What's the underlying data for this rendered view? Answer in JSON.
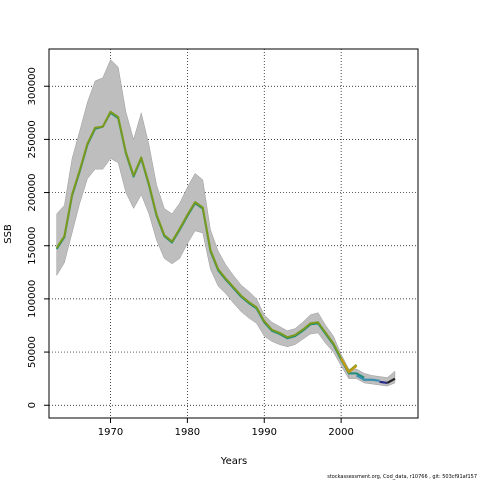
{
  "chart_data": {
    "type": "line",
    "title": "",
    "xlabel": "Years",
    "ylabel": "SSB",
    "xlim": [
      1962,
      2010
    ],
    "ylim": [
      -12000,
      335000
    ],
    "x_ticks": [
      1970,
      1980,
      1990,
      2000
    ],
    "y_ticks": [
      0,
      50000,
      100000,
      150000,
      200000,
      250000,
      300000
    ],
    "grid": true,
    "legend": "none",
    "footer": "stockassessment.org, Cod_data, r10766 , git: 503cf91af157",
    "band": {
      "color": "#bebebe",
      "x": [
        1963,
        1964,
        1965,
        1966,
        1967,
        1968,
        1969,
        1970,
        1971,
        1972,
        1973,
        1974,
        1975,
        1976,
        1977,
        1978,
        1979,
        1980,
        1981,
        1982,
        1983,
        1984,
        1985,
        1986,
        1987,
        1988,
        1989,
        1990,
        1991,
        1992,
        1993,
        1994,
        1995,
        1996,
        1997,
        1998,
        1999,
        2000,
        2001
      ],
      "upper": [
        180000,
        188000,
        232000,
        258000,
        285000,
        305000,
        308000,
        325000,
        318000,
        276000,
        250000,
        275000,
        245000,
        207000,
        185000,
        180000,
        190000,
        205000,
        218000,
        212000,
        165000,
        145000,
        132000,
        122000,
        113000,
        107000,
        100000,
        85000,
        78000,
        74000,
        70000,
        72000,
        78000,
        85000,
        87000,
        75000,
        65000,
        48000,
        34000
      ],
      "lower": [
        122000,
        134000,
        162000,
        190000,
        213000,
        222000,
        222000,
        232000,
        228000,
        200000,
        185000,
        198000,
        180000,
        155000,
        138000,
        133000,
        138000,
        152000,
        164000,
        162000,
        128000,
        112000,
        105000,
        96000,
        88000,
        82000,
        77000,
        65000,
        60000,
        57000,
        55000,
        57000,
        62000,
        67000,
        68000,
        58000,
        50000,
        37000,
        25000
      ]
    },
    "band_recent": {
      "color": "#bebebe",
      "x": [
        2001,
        2002,
        2003,
        2004,
        2005,
        2006,
        2007
      ],
      "upper": [
        34000,
        34000,
        30000,
        28000,
        27000,
        26000,
        32000
      ],
      "lower": [
        25000,
        25000,
        21000,
        20000,
        19000,
        18000,
        21000
      ]
    },
    "series": [
      {
        "color": "#1e8c78",
        "x": [
          1963,
          1964,
          1965,
          1966,
          1967,
          1968,
          1969,
          1970,
          1971,
          1972,
          1973,
          1974,
          1975,
          1976,
          1977,
          1978,
          1979,
          1980,
          1981,
          1982,
          1983,
          1984,
          1985,
          1986,
          1987,
          1988,
          1989,
          1990,
          1991,
          1992,
          1993,
          1994,
          1995,
          1996,
          1997,
          1998,
          1999,
          2000,
          2001,
          2002,
          2003
        ],
        "values": [
          147000,
          158000,
          197000,
          220000,
          245000,
          260000,
          262000,
          275000,
          270000,
          237000,
          215000,
          232000,
          207000,
          178000,
          159000,
          153000,
          165000,
          178000,
          190000,
          185000,
          145000,
          127000,
          118000,
          110000,
          102000,
          96000,
          91000,
          78000,
          70000,
          67000,
          63000,
          65000,
          70000,
          76000,
          77000,
          67000,
          57000,
          43000,
          30000,
          30000,
          26000
        ]
      },
      {
        "color": "#7a9a1e",
        "x": [
          1963,
          1964,
          1965,
          1966,
          1967,
          1968,
          1969,
          1970,
          1971,
          1972,
          1973,
          1974,
          1975,
          1976,
          1977,
          1978,
          1979,
          1980,
          1981,
          1982,
          1983,
          1984,
          1985,
          1986,
          1987,
          1988,
          1989,
          1990,
          1991,
          1992,
          1993,
          1994,
          1995,
          1996,
          1997,
          1998,
          1999,
          2000,
          2001,
          2002
        ],
        "values": [
          148000,
          159000,
          198000,
          221000,
          246000,
          261000,
          262000,
          276000,
          271000,
          238000,
          216000,
          233000,
          208000,
          179000,
          160000,
          154000,
          166000,
          179000,
          191000,
          186000,
          146000,
          128000,
          119000,
          111000,
          103000,
          97000,
          92000,
          79000,
          71000,
          68000,
          64000,
          66000,
          71000,
          77000,
          78000,
          68000,
          58000,
          44000,
          32000,
          38000
        ]
      },
      {
        "color": "#c09a10",
        "x": [
          2000,
          2001,
          2002
        ],
        "values": [
          44000,
          31000,
          37000
        ]
      },
      {
        "color": "#3a8fb0",
        "x": [
          2002,
          2003,
          2004,
          2005
        ],
        "values": [
          28000,
          24000,
          24000,
          23000
        ]
      },
      {
        "color": "#2a2a8a",
        "x": [
          2005,
          2006
        ],
        "values": [
          22000,
          21000
        ]
      },
      {
        "color": "#222222",
        "x": [
          2006,
          2007
        ],
        "values": [
          21000,
          25000
        ]
      }
    ]
  }
}
